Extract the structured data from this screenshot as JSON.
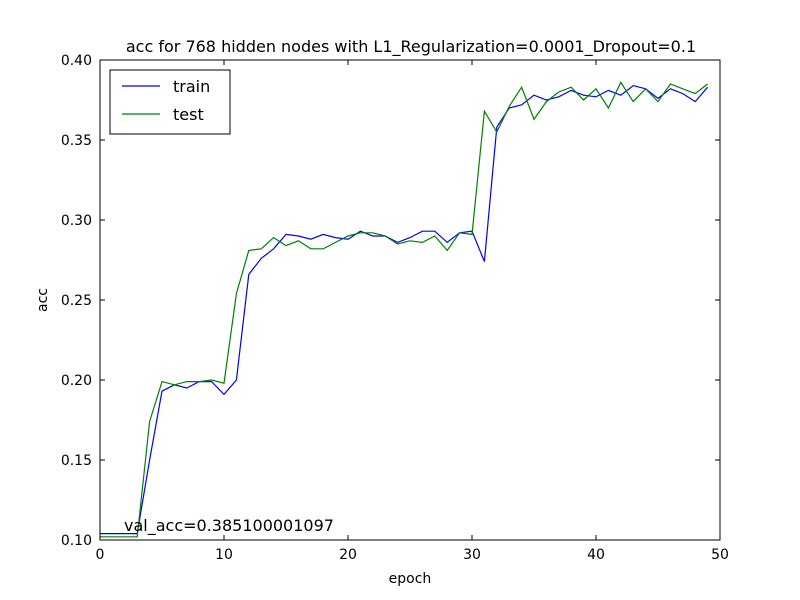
{
  "chart_data": {
    "type": "line",
    "title": "acc for 768 hidden nodes with L1_Regularization=0.0001_Dropout=0.1",
    "xlabel": "epoch",
    "ylabel": "acc",
    "xlim": [
      0,
      50
    ],
    "ylim": [
      0.1,
      0.4
    ],
    "xticks": [
      0,
      10,
      20,
      30,
      40,
      50
    ],
    "xtick_labels": [
      "0",
      "10",
      "20",
      "30",
      "40",
      "50"
    ],
    "yticks": [
      0.1,
      0.15,
      0.2,
      0.25,
      0.3,
      0.35,
      0.4
    ],
    "ytick_labels": [
      "0.10",
      "0.15",
      "0.20",
      "0.25",
      "0.30",
      "0.35",
      "0.40"
    ],
    "grid": false,
    "legend_position": "top-left",
    "annotation": "val_acc=0.385100001097",
    "x": [
      0,
      1,
      2,
      3,
      4,
      5,
      6,
      7,
      8,
      9,
      10,
      11,
      12,
      13,
      14,
      15,
      16,
      17,
      18,
      19,
      20,
      21,
      22,
      23,
      24,
      25,
      26,
      27,
      28,
      29,
      30,
      31,
      32,
      33,
      34,
      35,
      36,
      37,
      38,
      39,
      40,
      41,
      42,
      43,
      44,
      45,
      46,
      47,
      48,
      49
    ],
    "series": [
      {
        "name": "train",
        "color": "#0000ff",
        "values": [
          0.104,
          0.104,
          0.104,
          0.104,
          0.15,
          0.193,
          0.197,
          0.195,
          0.199,
          0.199,
          0.191,
          0.2,
          0.266,
          0.276,
          0.282,
          0.291,
          0.29,
          0.288,
          0.291,
          0.289,
          0.288,
          0.293,
          0.29,
          0.29,
          0.286,
          0.289,
          0.293,
          0.293,
          0.286,
          0.292,
          0.293,
          0.274,
          0.358,
          0.37,
          0.372,
          0.378,
          0.375,
          0.377,
          0.381,
          0.378,
          0.377,
          0.381,
          0.378,
          0.384,
          0.382,
          0.376,
          0.382,
          0.379,
          0.374,
          0.383
        ]
      },
      {
        "name": "test",
        "color": "#008000",
        "values": [
          0.102,
          0.102,
          0.102,
          0.102,
          0.174,
          0.199,
          0.197,
          0.199,
          0.199,
          0.2,
          0.198,
          0.254,
          0.281,
          0.282,
          0.289,
          0.284,
          0.287,
          0.282,
          0.282,
          0.286,
          0.29,
          0.292,
          0.292,
          0.29,
          0.285,
          0.287,
          0.286,
          0.29,
          0.281,
          0.292,
          0.291,
          0.368,
          0.355,
          0.371,
          0.383,
          0.363,
          0.374,
          0.38,
          0.383,
          0.375,
          0.382,
          0.37,
          0.386,
          0.374,
          0.382,
          0.374,
          0.385,
          0.382,
          0.379,
          0.385
        ]
      }
    ]
  }
}
